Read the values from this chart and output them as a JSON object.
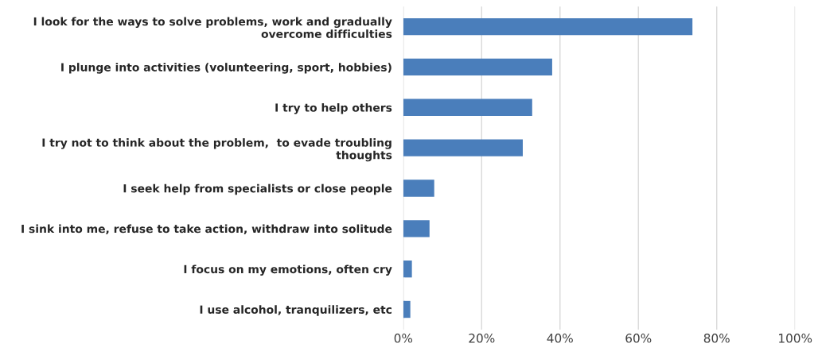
{
  "chart_data": {
    "type": "bar",
    "orientation": "horizontal",
    "categories": [
      "I look for the ways to solve problems, work and gradually\novercome difficulties",
      "I plunge into activities (volunteering, sport, hobbies)",
      "I try to help others",
      "I try not to think about the problem,  to evade troubling\nthoughts",
      "I seek help from specialists or close people",
      "I sink into me, refuse to take action, withdraw into solitude",
      "I focus on my emotions, often cry",
      "I use alcohol, tranquilizers, etc"
    ],
    "values": [
      73.8,
      38.0,
      32.9,
      30.5,
      7.9,
      6.7,
      2.2,
      1.8
    ],
    "color": "#4a7ebb",
    "xlim": [
      0,
      100
    ],
    "xticks": [
      {
        "value": 0,
        "label": "0%"
      },
      {
        "value": 20,
        "label": "20%"
      },
      {
        "value": 40,
        "label": "40%"
      },
      {
        "value": 60,
        "label": "60%"
      },
      {
        "value": 80,
        "label": "80%"
      },
      {
        "value": 100,
        "label": "100%"
      }
    ],
    "grid": "x",
    "legend": false
  }
}
